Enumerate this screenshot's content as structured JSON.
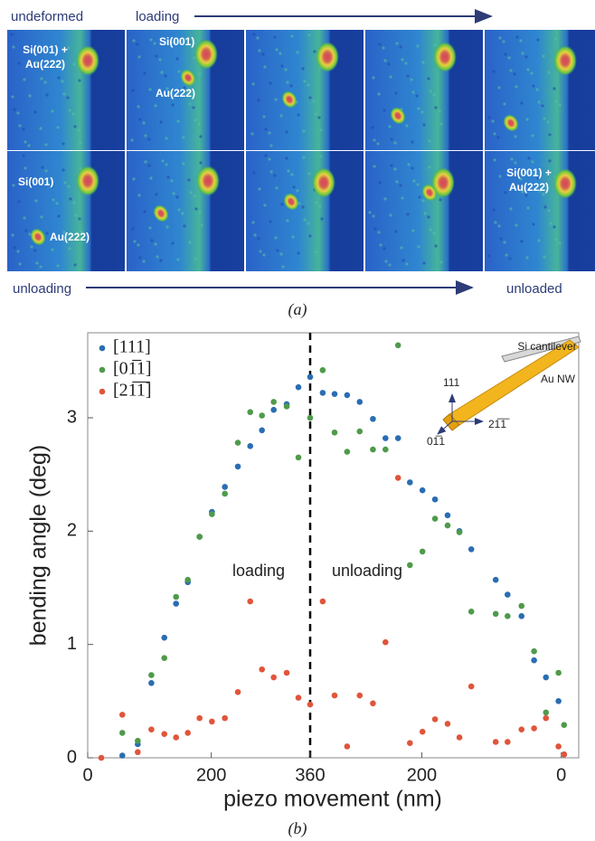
{
  "figure_a": {
    "top_left": "undeformed",
    "top_right": "loading",
    "bottom_left": "unloading",
    "bottom_right": "unloaded",
    "r0c0": [
      "Si(001) +",
      "Au(222)"
    ],
    "r0c1": [
      "Si(001)",
      "Au(222)"
    ],
    "r1c0": [
      "Si(001)",
      "Au(222)"
    ],
    "r1c4": [
      "Si(001) +",
      "Au(222)"
    ],
    "caption": "(a)"
  },
  "caption_b": "(b)",
  "chart_data": [
    {
      "type": "scatter",
      "ylabel": "bending angle (deg)",
      "annotation": "loading",
      "inset": {
        "cantilever": "Si cantilever",
        "wire": "Au NW",
        "up": "111",
        "left": "01̅1",
        "right": "21̅1̅"
      },
      "xlim": [
        0,
        360
      ],
      "xticks": [
        0,
        200,
        360
      ],
      "ylim": [
        0,
        3.75
      ],
      "yticks": [
        0,
        1,
        2,
        3
      ],
      "legend": "top-left",
      "x": [
        22,
        56,
        81,
        103,
        124,
        143,
        162,
        181,
        201,
        222,
        243,
        263,
        282,
        301,
        322,
        341,
        360
      ],
      "series": [
        {
          "name": "[111]",
          "color": "#2a6db3",
          "values": [
            null,
            0.02,
            0.12,
            0.66,
            1.06,
            1.36,
            1.55,
            1.95,
            2.17,
            2.39,
            2.57,
            2.75,
            2.89,
            3.07,
            3.12,
            3.27,
            3.36
          ]
        },
        {
          "name": "[01̅1]",
          "color": "#4f9a4b",
          "values": [
            null,
            0.22,
            0.15,
            0.73,
            0.88,
            1.42,
            1.57,
            1.95,
            2.15,
            2.33,
            2.78,
            3.05,
            3.02,
            3.14,
            3.1,
            2.65,
            3.0
          ]
        },
        {
          "name": "[21̅1̅]",
          "color": "#e0553a",
          "values": [
            0.0,
            0.38,
            0.05,
            0.25,
            0.21,
            0.18,
            0.22,
            0.35,
            0.32,
            0.35,
            0.58,
            1.38,
            0.78,
            0.71,
            0.75,
            0.53,
            0.47
          ]
        }
      ]
    },
    {
      "type": "scatter",
      "xlabel": "piezo movement (nm)",
      "annotation": "unloading",
      "xlim": [
        360,
        -25
      ],
      "xticks": [
        200,
        0
      ],
      "ylim": [
        0,
        3.75
      ],
      "x": [
        342,
        325,
        307,
        289,
        270,
        252,
        234,
        217,
        199,
        181,
        163,
        146,
        129,
        94,
        77,
        57,
        39,
        22,
        4,
        -4
      ],
      "series": [
        {
          "color": "#2a6db3",
          "values": [
            3.22,
            3.21,
            3.2,
            3.14,
            2.99,
            2.82,
            2.82,
            2.43,
            2.36,
            2.28,
            2.14,
            2.0,
            1.84,
            1.57,
            1.44,
            1.25,
            0.86,
            0.71,
            0.5,
            0.03
          ]
        },
        {
          "color": "#4f9a4b",
          "values": [
            3.42,
            2.87,
            2.7,
            2.88,
            2.72,
            2.72,
            3.64,
            1.7,
            1.82,
            2.11,
            2.05,
            1.99,
            1.29,
            1.27,
            1.25,
            1.34,
            0.94,
            0.4,
            0.75,
            0.29
          ]
        },
        {
          "color": "#e0553a",
          "values": [
            1.38,
            0.55,
            0.1,
            0.55,
            0.48,
            1.02,
            2.47,
            0.13,
            0.23,
            0.34,
            0.3,
            0.18,
            0.63,
            0.14,
            0.14,
            0.25,
            0.26,
            0.35,
            0.1,
            0.03
          ]
        }
      ]
    }
  ]
}
